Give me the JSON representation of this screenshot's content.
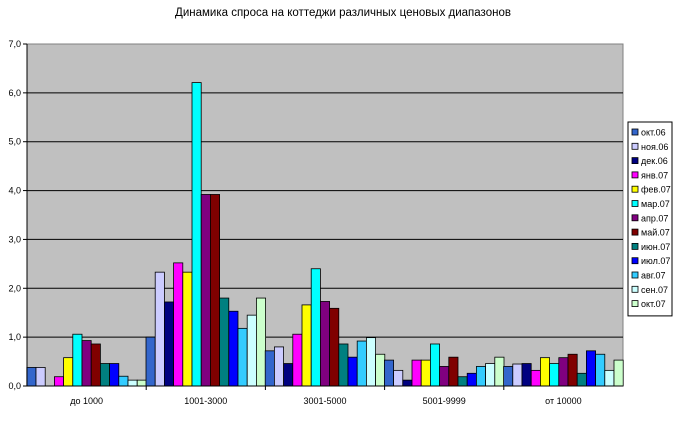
{
  "chart_data": {
    "type": "bar",
    "title": "Динамика спроса на коттеджи различных ценовых диапазонов",
    "xlabel": "",
    "ylabel": "",
    "ylim": [
      0,
      7
    ],
    "y_ticks": [
      "0,0",
      "1,0",
      "2,0",
      "3,0",
      "4,0",
      "5,0",
      "6,0",
      "7,0"
    ],
    "grid": true,
    "legend_position": "right",
    "plot_background": "#c0c0c0",
    "categories": [
      "до 1000",
      "1001-3000",
      "3001-5000",
      "5001-9999",
      "от 10000"
    ],
    "series": [
      {
        "name": "окт.06",
        "color": "#3366cc",
        "values": [
          0.38,
          1.0,
          0.72,
          0.53,
          0.4
        ]
      },
      {
        "name": "ноя.06",
        "color": "#ccccff",
        "values": [
          0.38,
          2.33,
          0.8,
          0.32,
          0.45
        ]
      },
      {
        "name": "дек.06",
        "color": "#000080",
        "values": [
          0.0,
          1.72,
          0.46,
          0.12,
          0.46
        ]
      },
      {
        "name": "янв.07",
        "color": "#ff00ff",
        "values": [
          0.19,
          2.52,
          1.06,
          0.53,
          0.32
        ]
      },
      {
        "name": "фев.07",
        "color": "#ffff00",
        "values": [
          0.58,
          2.33,
          1.66,
          0.53,
          0.58
        ]
      },
      {
        "name": "мар.07",
        "color": "#00ffff",
        "values": [
          1.06,
          6.21,
          2.4,
          0.86,
          0.46
        ]
      },
      {
        "name": "апр.07",
        "color": "#800080",
        "values": [
          0.93,
          3.92,
          1.73,
          0.4,
          0.58
        ]
      },
      {
        "name": "май.07",
        "color": "#800000",
        "values": [
          0.86,
          3.92,
          1.59,
          0.59,
          0.65
        ]
      },
      {
        "name": "июн.07",
        "color": "#008080",
        "values": [
          0.46,
          1.8,
          0.86,
          0.19,
          0.26
        ]
      },
      {
        "name": "июл.07",
        "color": "#0000ff",
        "values": [
          0.46,
          1.53,
          0.59,
          0.26,
          0.72
        ]
      },
      {
        "name": "авг.07",
        "color": "#33ccff",
        "values": [
          0.2,
          1.18,
          0.92,
          0.4,
          0.65
        ]
      },
      {
        "name": "сен.07",
        "color": "#ccffff",
        "values": [
          0.12,
          1.45,
          0.99,
          0.46,
          0.32
        ]
      },
      {
        "name": "окт.07",
        "color": "#ccffcc",
        "values": [
          0.12,
          1.8,
          0.65,
          0.59,
          0.53
        ]
      }
    ]
  }
}
